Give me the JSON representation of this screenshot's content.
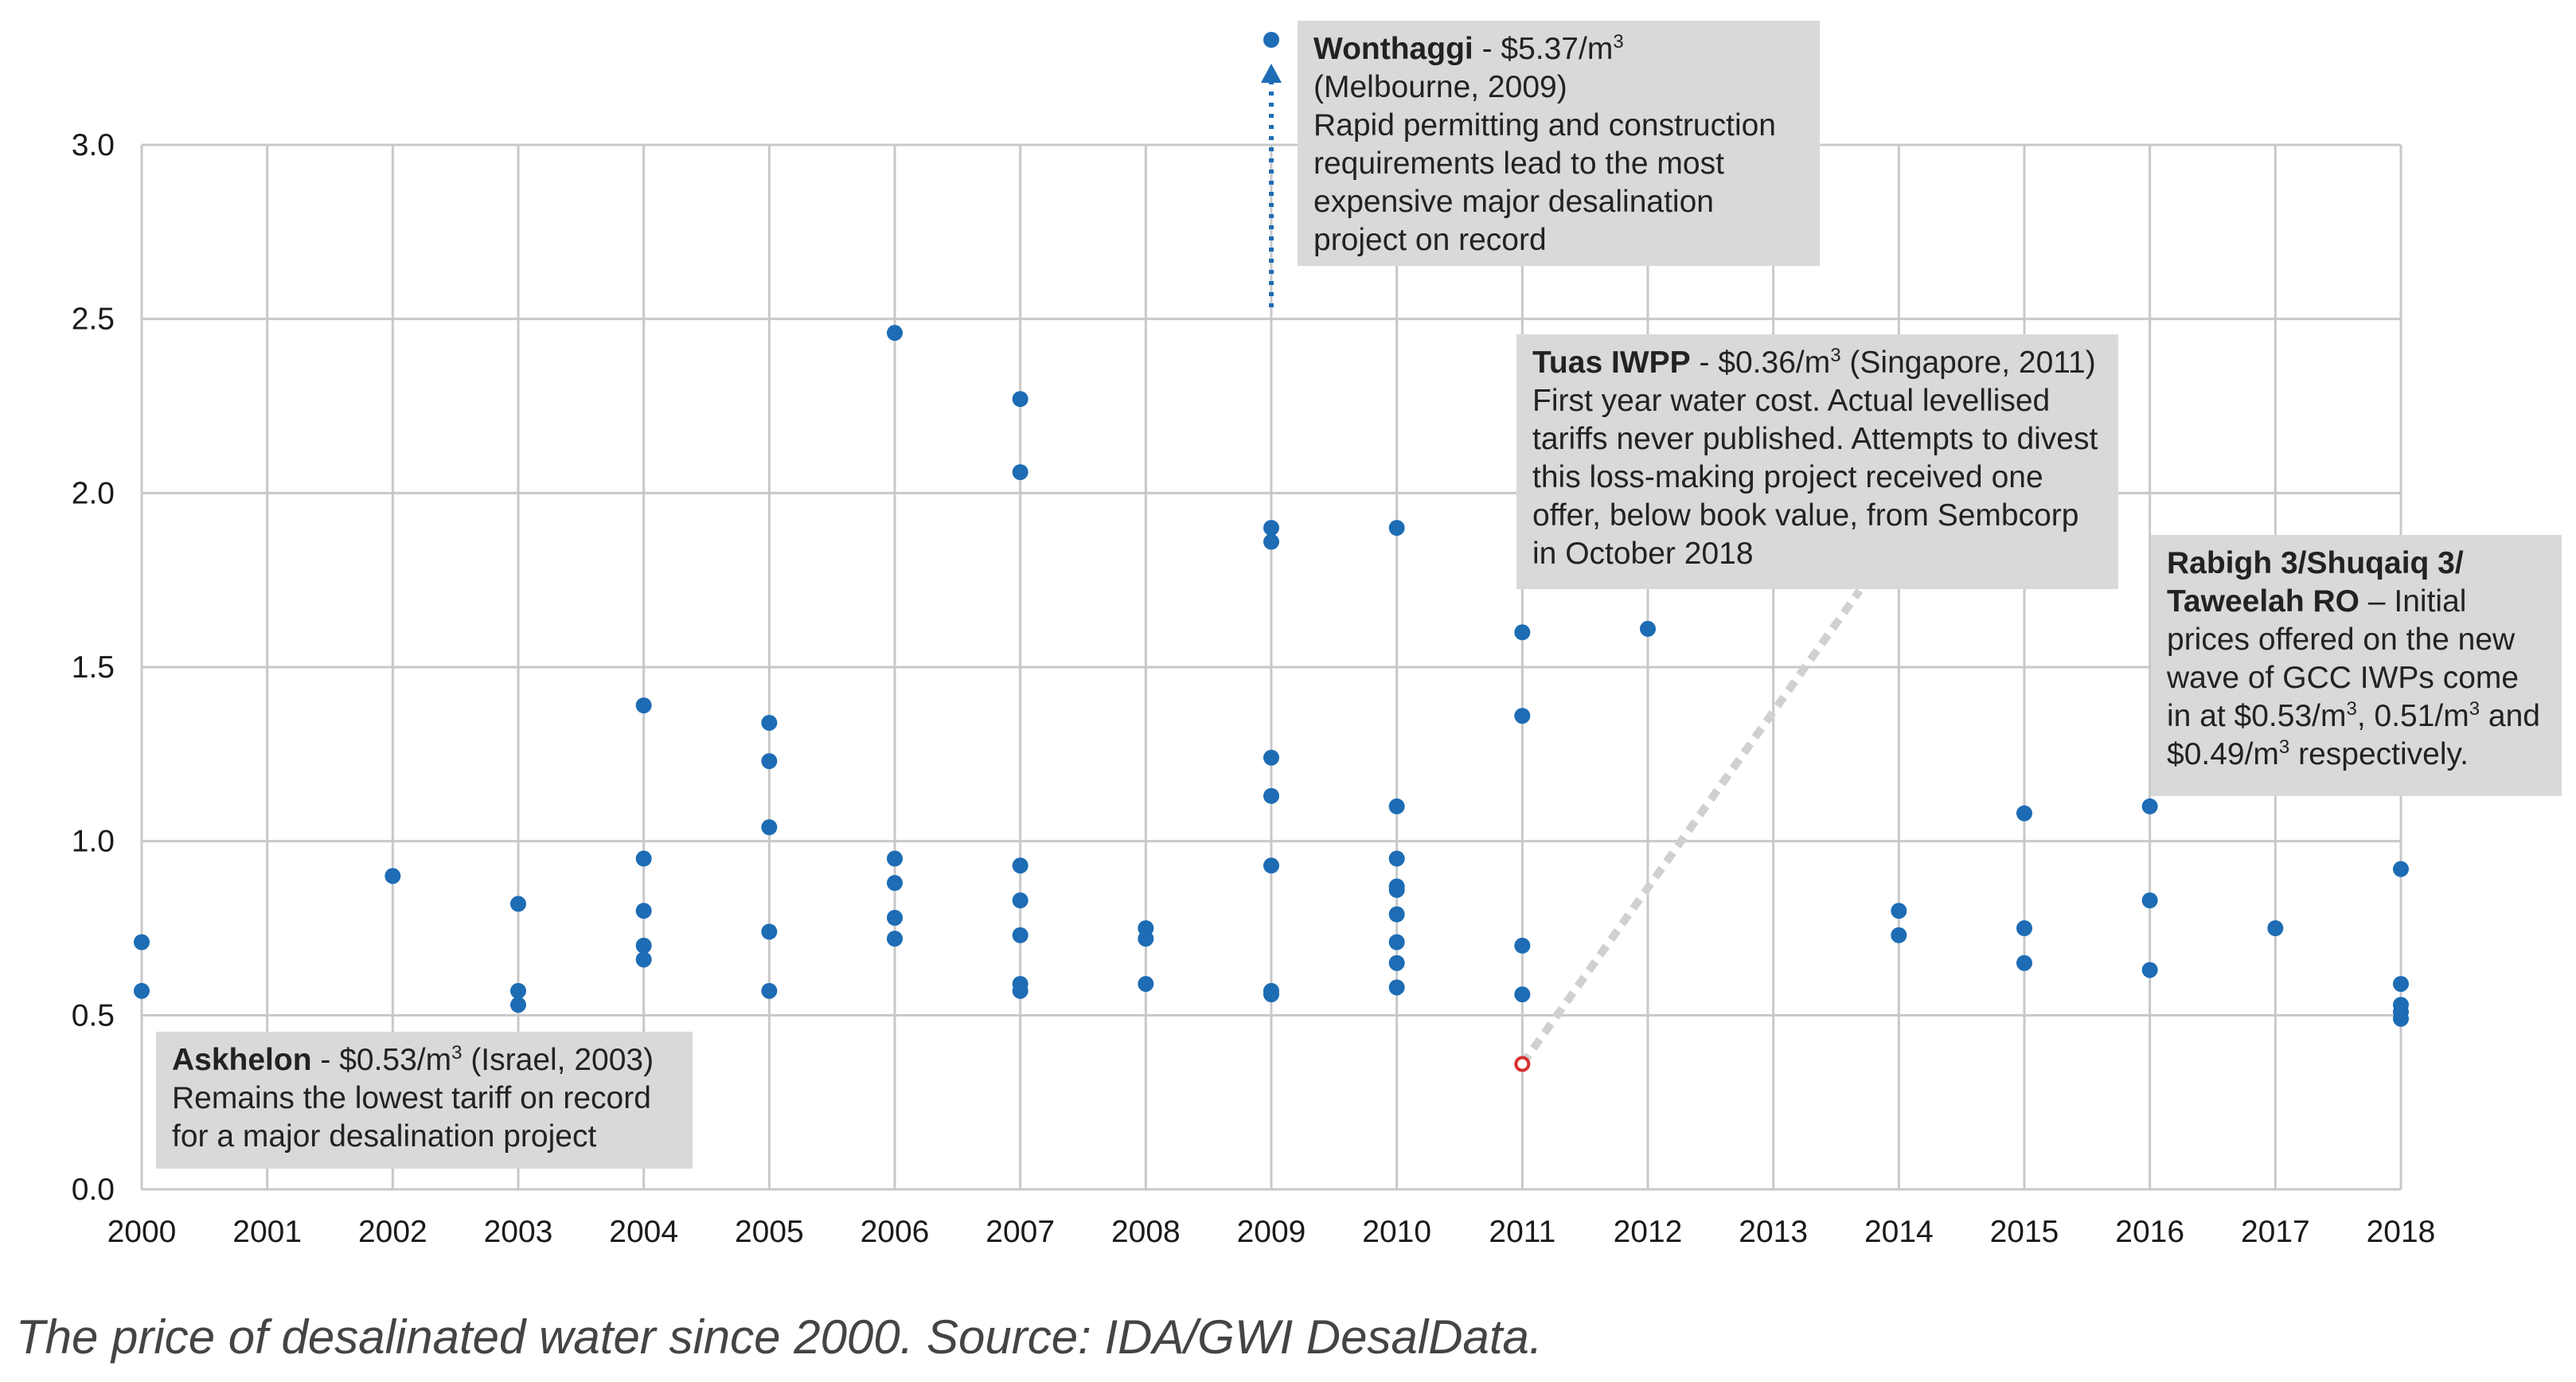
{
  "chart_data": {
    "type": "scatter",
    "title": "",
    "xlabel": "",
    "ylabel": "",
    "categories": [
      "2000",
      "2001",
      "2002",
      "2003",
      "2004",
      "2005",
      "2006",
      "2007",
      "2008",
      "2009",
      "2010",
      "2011",
      "2012",
      "2013",
      "2014",
      "2015",
      "2016",
      "2017",
      "2018"
    ],
    "ylim": [
      0,
      3.0
    ],
    "y_ticks": [
      "0.0",
      "0.5",
      "1.0",
      "1.5",
      "2.0",
      "2.5",
      "3.0"
    ],
    "grid": true,
    "points": [
      {
        "x": "2000",
        "y": 0.71
      },
      {
        "x": "2000",
        "y": 0.57
      },
      {
        "x": "2002",
        "y": 0.9
      },
      {
        "x": "2003",
        "y": 0.82
      },
      {
        "x": "2003",
        "y": 0.57
      },
      {
        "x": "2003",
        "y": 0.53
      },
      {
        "x": "2004",
        "y": 1.39
      },
      {
        "x": "2004",
        "y": 0.95
      },
      {
        "x": "2004",
        "y": 0.8
      },
      {
        "x": "2004",
        "y": 0.7
      },
      {
        "x": "2004",
        "y": 0.66
      },
      {
        "x": "2005",
        "y": 1.34
      },
      {
        "x": "2005",
        "y": 1.23
      },
      {
        "x": "2005",
        "y": 1.04
      },
      {
        "x": "2005",
        "y": 0.74
      },
      {
        "x": "2005",
        "y": 0.57
      },
      {
        "x": "2006",
        "y": 2.46
      },
      {
        "x": "2006",
        "y": 0.95
      },
      {
        "x": "2006",
        "y": 0.88
      },
      {
        "x": "2006",
        "y": 0.78
      },
      {
        "x": "2006",
        "y": 0.72
      },
      {
        "x": "2007",
        "y": 2.27
      },
      {
        "x": "2007",
        "y": 2.06
      },
      {
        "x": "2007",
        "y": 0.93
      },
      {
        "x": "2007",
        "y": 0.83
      },
      {
        "x": "2007",
        "y": 0.73
      },
      {
        "x": "2007",
        "y": 0.59
      },
      {
        "x": "2007",
        "y": 0.57
      },
      {
        "x": "2008",
        "y": 0.75
      },
      {
        "x": "2008",
        "y": 0.72
      },
      {
        "x": "2008",
        "y": 0.59
      },
      {
        "x": "2009",
        "y": 1.9
      },
      {
        "x": "2009",
        "y": 1.86
      },
      {
        "x": "2009",
        "y": 1.24
      },
      {
        "x": "2009",
        "y": 1.13
      },
      {
        "x": "2009",
        "y": 0.93
      },
      {
        "x": "2009",
        "y": 0.57
      },
      {
        "x": "2009",
        "y": 0.56
      },
      {
        "x": "2010",
        "y": 1.9
      },
      {
        "x": "2010",
        "y": 1.1
      },
      {
        "x": "2010",
        "y": 0.95
      },
      {
        "x": "2010",
        "y": 0.87
      },
      {
        "x": "2010",
        "y": 0.86
      },
      {
        "x": "2010",
        "y": 0.79
      },
      {
        "x": "2010",
        "y": 0.71
      },
      {
        "x": "2010",
        "y": 0.65
      },
      {
        "x": "2010",
        "y": 0.58
      },
      {
        "x": "2011",
        "y": 1.6
      },
      {
        "x": "2011",
        "y": 1.36
      },
      {
        "x": "2011",
        "y": 0.7
      },
      {
        "x": "2011",
        "y": 0.56
      },
      {
        "x": "2012",
        "y": 1.61
      },
      {
        "x": "2014",
        "y": 0.8
      },
      {
        "x": "2014",
        "y": 0.73
      },
      {
        "x": "2015",
        "y": 1.08
      },
      {
        "x": "2015",
        "y": 0.75
      },
      {
        "x": "2015",
        "y": 0.65
      },
      {
        "x": "2016",
        "y": 1.1
      },
      {
        "x": "2016",
        "y": 0.83
      },
      {
        "x": "2016",
        "y": 0.63
      },
      {
        "x": "2017",
        "y": 0.75
      },
      {
        "x": "2018",
        "y": 0.92
      },
      {
        "x": "2018",
        "y": 0.59
      },
      {
        "x": "2018",
        "y": 0.53
      },
      {
        "x": "2018",
        "y": 0.51
      },
      {
        "x": "2018",
        "y": 0.49
      }
    ],
    "outlier": {
      "x": "2009",
      "y": 5.37,
      "label": "Wonthaggi"
    },
    "highlight": {
      "x": "2011",
      "y": 0.36,
      "label": "Tuas IWPP"
    },
    "colors": {
      "point": "#1d6cb4",
      "highlight": "#d93030",
      "grid": "#c8c8c8",
      "annotation_bg": "#d9d9d9",
      "leader": "#d0d0d0"
    },
    "annotations": {
      "wonthaggi": {
        "title": "Wonthaggi",
        "text_a": " - $5.37/m",
        "sup": "3",
        "line2": "(Melbourne, 2009)",
        "body": "Rapid permitting and construction requirements lead to the most expensive major desalination project on record"
      },
      "tuas": {
        "title": "Tuas IWPP",
        "text_a": " - $0.36/m",
        "sup": "3",
        "text_b": " (Singapore, 2011)",
        "body": "First year water cost. Actual levellised tariffs never published. Attempts to divest this loss-making project received one offer, below book value, from Sembcorp in October 2018"
      },
      "rabigh": {
        "title": "Rabigh 3/Shuqaiq 3/ Taweelah RO",
        "text_a": " – Initial prices offered on the new wave of GCC IWPs come in at $0.53/m",
        "sup1": "3",
        "text_b": ", 0.51/m",
        "sup2": "3",
        "text_c": " and $0.49/m",
        "sup3": "3",
        "text_d": " respectively."
      },
      "askhelon": {
        "title": "Askhelon",
        "text_a": " - $0.53/m",
        "sup": "3",
        "text_b": " (Israel, 2003)",
        "body": "Remains the lowest tariff on record for a major desalination project"
      }
    }
  },
  "caption": "The price of desalinated water since 2000. Source: IDA/GWI DesalData."
}
